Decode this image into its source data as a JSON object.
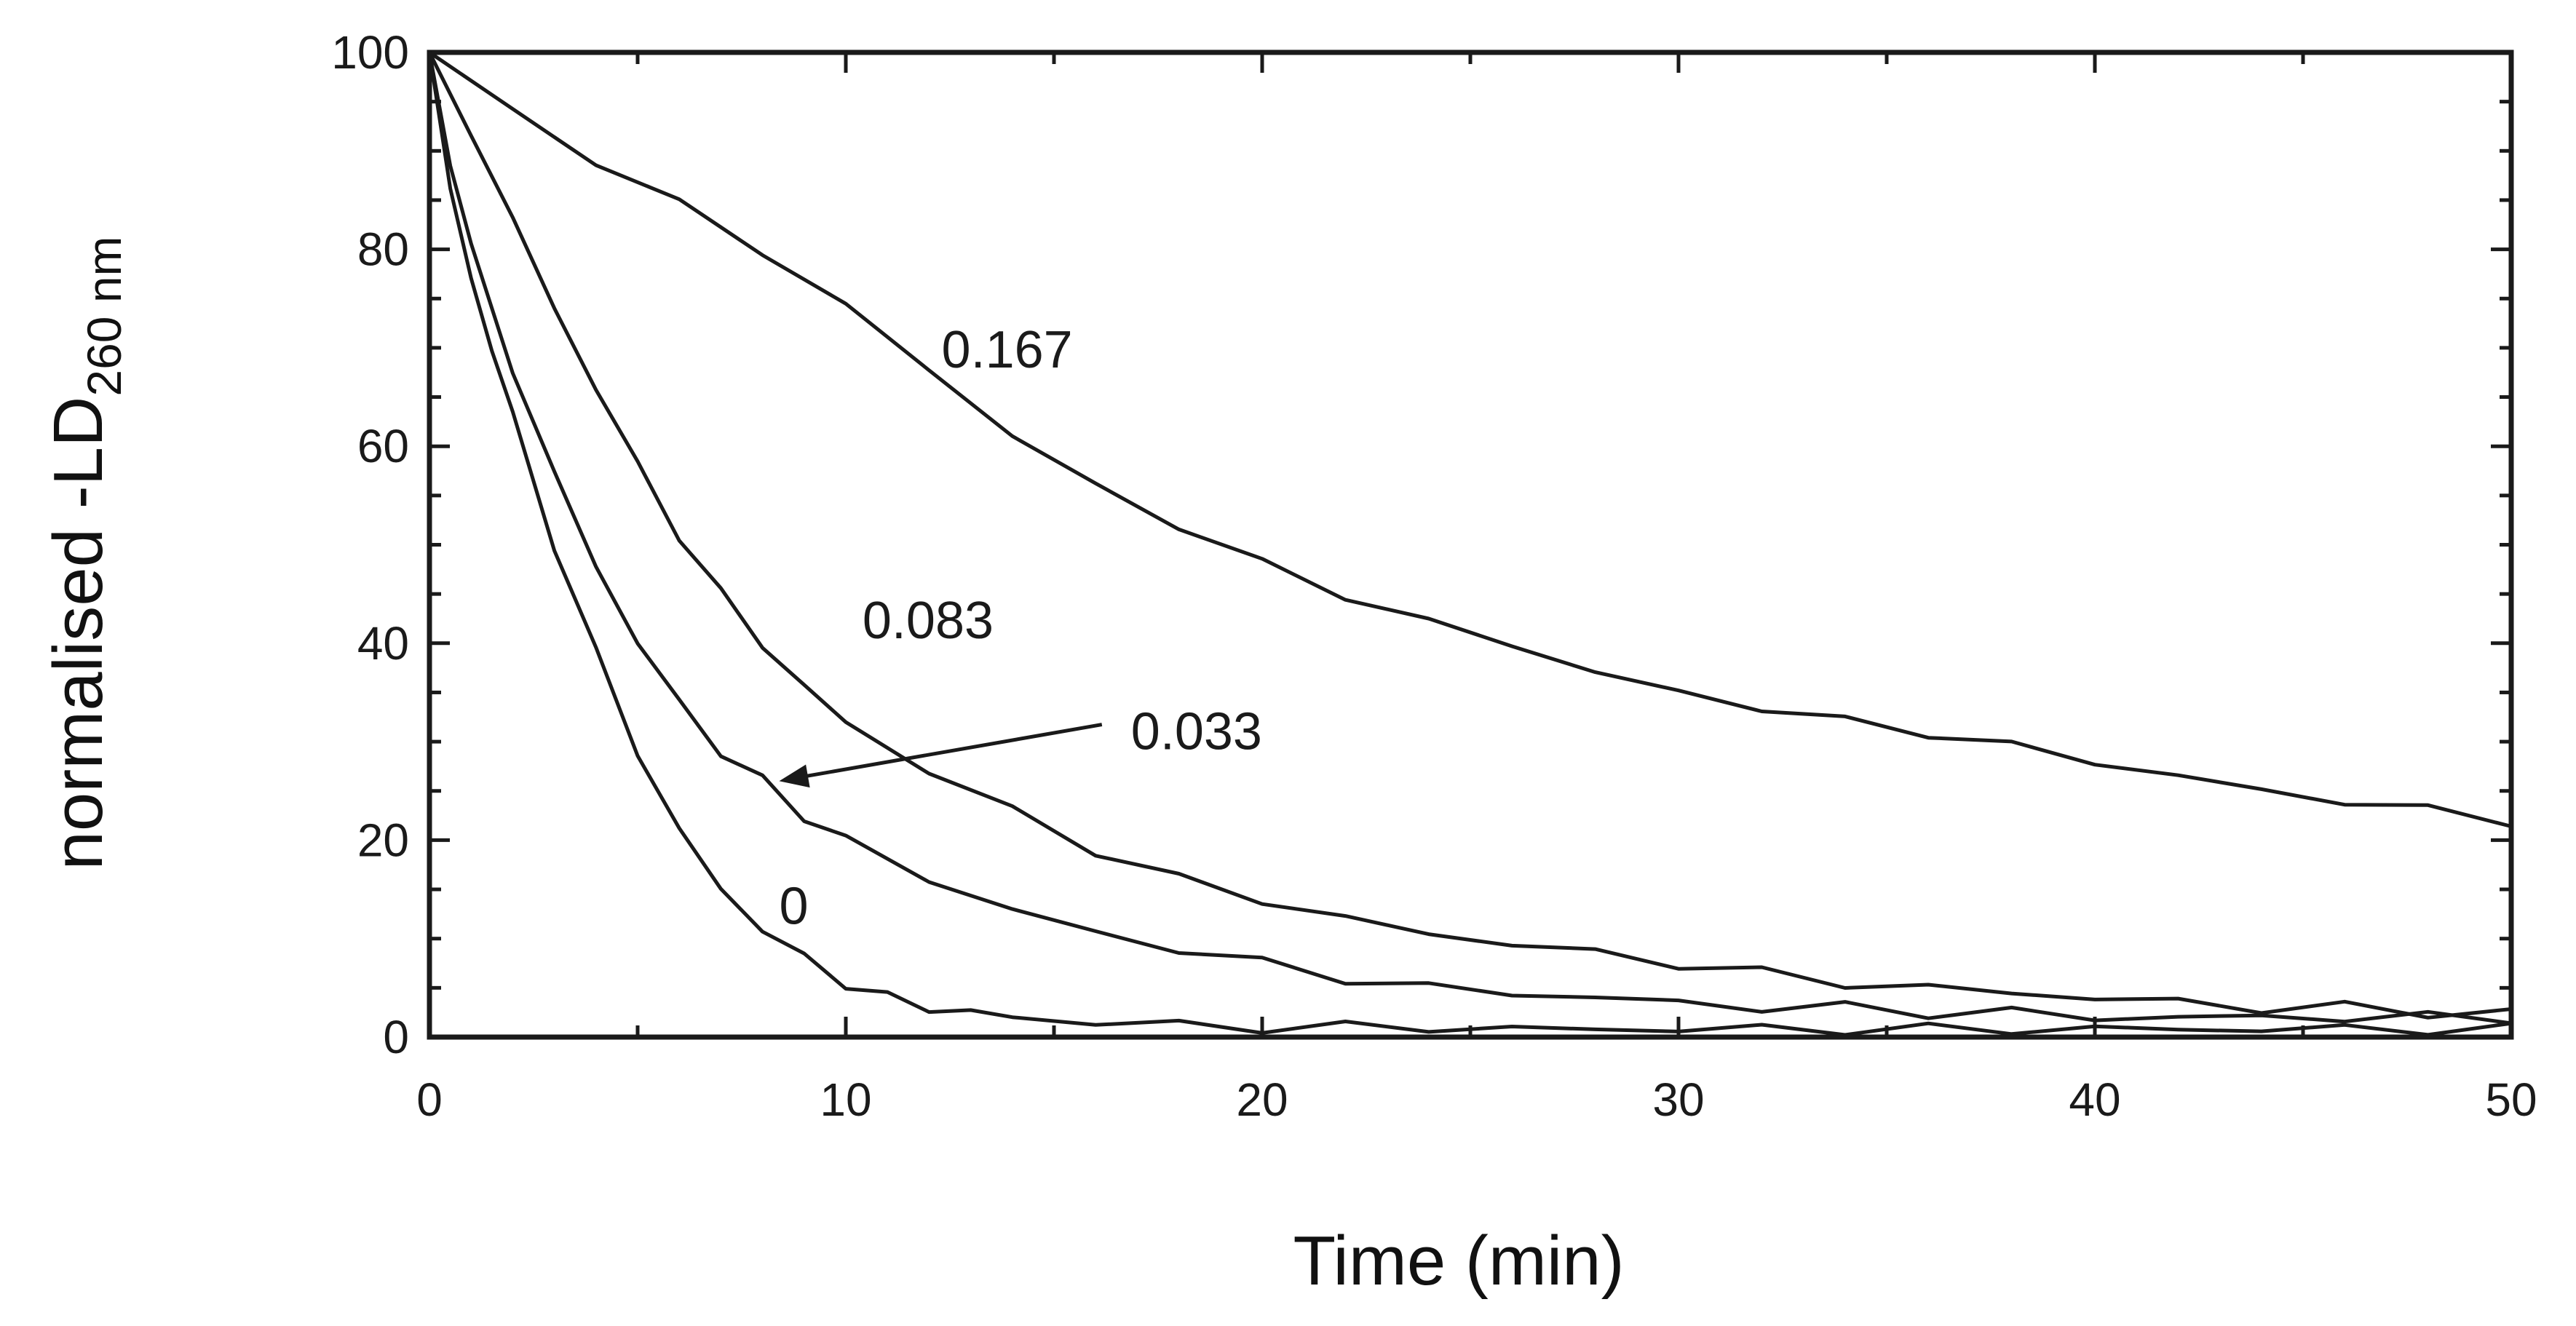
{
  "chart_data": {
    "type": "line",
    "title": "",
    "xlabel": "Time (min)",
    "ylabel": {
      "text": "normalised -LD",
      "subscript": "260 nm"
    },
    "xlim": [
      0,
      50
    ],
    "ylim": [
      0,
      100
    ],
    "xticks": [
      "0",
      "10",
      "20",
      "30",
      "40",
      "50"
    ],
    "yticks": [
      "0",
      "20",
      "40",
      "60",
      "80",
      "100"
    ],
    "grid": false,
    "legend": "none",
    "annotation_arrow": {
      "label": "0.033",
      "from": [
        16.5,
        31
      ],
      "to": [
        8.4,
        26
      ]
    },
    "series": [
      {
        "label": "0.167",
        "label_pos": [
          12.3,
          68
        ],
        "x": [
          0,
          2,
          4,
          6,
          8,
          10,
          12,
          14,
          16,
          18,
          20,
          22,
          24,
          26,
          28,
          30,
          32,
          34,
          36,
          38,
          40,
          42,
          44,
          46,
          48,
          50
        ],
        "y": [
          100,
          94,
          89,
          84.5,
          80,
          74,
          68,
          61,
          56,
          52,
          48,
          45,
          42,
          40,
          37,
          35,
          33.5,
          32,
          31,
          29.5,
          28,
          26.5,
          25,
          24,
          23,
          22
        ]
      },
      {
        "label": "0.083",
        "label_pos": [
          10.4,
          40.5
        ],
        "x": [
          0,
          1,
          2,
          3,
          4,
          5,
          6,
          7,
          8,
          9,
          10,
          12,
          14,
          16,
          18,
          20,
          22,
          24,
          26,
          28,
          30,
          32,
          34,
          36,
          38,
          40,
          42,
          44,
          46,
          48,
          50
        ],
        "y": [
          100,
          92,
          83,
          74,
          66,
          58,
          51,
          45,
          40,
          35.5,
          32,
          27,
          23,
          19,
          16,
          14,
          12,
          10.5,
          9.5,
          8.5,
          7.5,
          6.5,
          5.5,
          5,
          4.5,
          4,
          3.5,
          3,
          3,
          2.5,
          2.5
        ]
      },
      {
        "label": "0.033",
        "label_pos": [
          17.2,
          30.5
        ],
        "x": [
          0,
          0.5,
          1,
          2,
          3,
          4,
          5,
          6,
          7,
          8,
          9,
          10,
          12,
          14,
          16,
          18,
          20,
          22,
          24,
          26,
          28,
          30,
          32,
          34,
          36,
          38,
          40,
          42,
          44,
          46,
          48,
          50
        ],
        "y": [
          100,
          89,
          80,
          68,
          57,
          48,
          40,
          34,
          29,
          26,
          22.5,
          20,
          16,
          13,
          10.5,
          9,
          7.5,
          6,
          5,
          4.5,
          4,
          3.5,
          3,
          3,
          2.5,
          2.5,
          2,
          2,
          2,
          2,
          2,
          2
        ]
      },
      {
        "label": "0",
        "label_pos": [
          8.4,
          11.5
        ],
        "x": [
          0,
          0.5,
          1,
          1.5,
          2,
          3,
          4,
          5,
          6,
          7,
          8,
          9,
          10,
          11,
          12,
          13,
          14,
          16,
          18,
          20,
          22,
          24,
          26,
          28,
          30,
          32,
          34,
          36,
          38,
          40,
          42,
          44,
          46,
          48,
          50
        ],
        "y": [
          100,
          86,
          77,
          70,
          63,
          50,
          39,
          29,
          21,
          15,
          11,
          8,
          5.5,
          4,
          3,
          2.5,
          2,
          1.5,
          1.2,
          1,
          1,
          1,
          0.8,
          0.8,
          0.8,
          0.8,
          0.8,
          0.8,
          0.8,
          0.8,
          0.8,
          0.8,
          0.8,
          0.8,
          0.8
        ]
      }
    ]
  }
}
